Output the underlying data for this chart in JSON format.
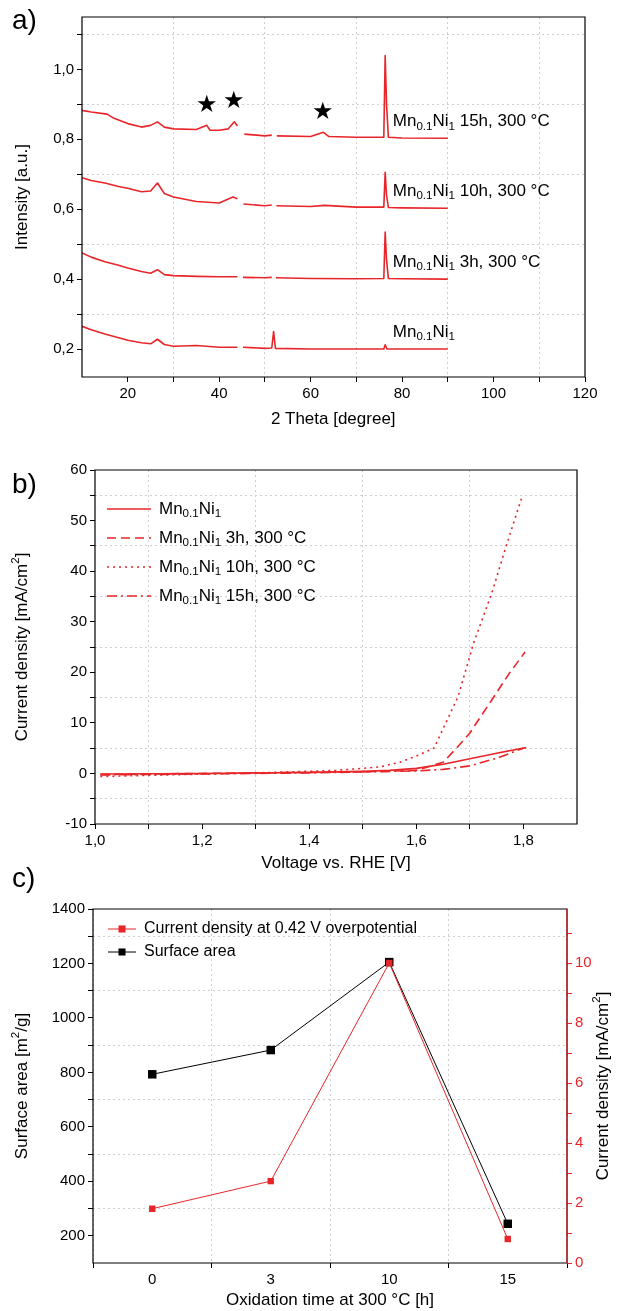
{
  "chart_data": [
    {
      "type": "line",
      "xlabel": "2 Theta [degree]",
      "ylabel": "Intensity [a.u.]",
      "xlim": [
        10,
        120
      ],
      "xticks": [
        20,
        {
          "value": 30,
          "label": null
        },
        40,
        {
          "value": 50,
          "label": null
        },
        60,
        {
          "value": 70,
          "label": null
        },
        80,
        {
          "value": 90,
          "label": null
        },
        100,
        {
          "value": 110,
          "label": null
        },
        120
      ],
      "ylim": [
        0.12,
        1.15
      ],
      "yticks": [
        {
          "value": 0.2,
          "label": "0,2"
        },
        {
          "value": 0.3,
          "label": null
        },
        {
          "value": 0.4,
          "label": "0,4"
        },
        {
          "value": 0.5,
          "label": null
        },
        {
          "value": 0.6,
          "label": "0,6"
        },
        {
          "value": 0.7,
          "label": null
        },
        {
          "value": 0.8,
          "label": "0,8"
        },
        {
          "value": 0.9,
          "label": null
        },
        {
          "value": 1.0,
          "label": "1,0"
        },
        {
          "value": 1.1,
          "label": null
        }
      ],
      "grid": true,
      "marker": "none",
      "line_style": "solid",
      "series": [
        {
          "name": "Mn$_{0.1}$Ni$_{1}$",
          "color": "#e8262a",
          "x": [
            10,
            12,
            15,
            18,
            20,
            23,
            25,
            26.5,
            28,
            30,
            35,
            40,
            44,
            44.6,
            45.2,
            50,
            51.5,
            51.9,
            52.3,
            60,
            70,
            76,
            76.3,
            76.7,
            80,
            90
          ],
          "values": [
            0.265,
            0.255,
            0.243,
            0.232,
            0.225,
            0.218,
            0.215,
            0.228,
            0.213,
            0.208,
            0.21,
            0.205,
            0.205,
            null,
            0.205,
            0.202,
            0.203,
            0.25,
            0.202,
            0.2,
            0.2,
            0.2,
            0.212,
            0.2,
            0.2,
            0.2
          ]
        },
        {
          "name": "Mn$_{0.1}$Ni$_{1}$ 3h, 300 °C",
          "color": "#e8262a",
          "x": [
            10,
            12,
            15,
            18,
            20,
            23,
            25,
            26.5,
            28,
            30,
            35,
            40,
            44,
            44.6,
            45.2,
            50,
            51.5,
            51.9,
            52.4,
            60,
            70,
            76,
            76.3,
            76.6,
            77,
            80,
            90
          ],
          "values": [
            0.475,
            0.463,
            0.45,
            0.44,
            0.432,
            0.422,
            0.417,
            0.427,
            0.413,
            0.41,
            0.408,
            0.407,
            0.407,
            null,
            0.405,
            0.404,
            0.405,
            null,
            0.404,
            0.402,
            0.401,
            0.402,
            0.535,
            0.455,
            0.402,
            0.401,
            0.4
          ]
        },
        {
          "name": "Mn$_{0.1}$Ni$_{1}$ 10h, 300 °C",
          "color": "#e8262a",
          "x": [
            10,
            12,
            15,
            18,
            20,
            23,
            25,
            26.5,
            28,
            30,
            35,
            37.5,
            40,
            43,
            44,
            44.6,
            45.3,
            50,
            51.5,
            51.9,
            52.5,
            60,
            63,
            70,
            76,
            76.3,
            76.6,
            77,
            80,
            90
          ],
          "values": [
            0.69,
            0.682,
            0.675,
            0.665,
            0.66,
            0.65,
            0.652,
            0.675,
            0.645,
            0.635,
            0.622,
            0.62,
            0.618,
            0.635,
            0.63,
            null,
            0.615,
            0.61,
            0.612,
            null,
            0.61,
            0.608,
            0.611,
            0.606,
            0.606,
            0.706,
            0.64,
            0.605,
            0.604,
            0.603
          ]
        },
        {
          "name": "Mn$_{0.1}$Ni$_{1}$ 15h, 300 °C",
          "color": "#e8262a",
          "x": [
            10,
            12,
            15.5,
            17,
            20,
            23,
            25,
            26.5,
            28,
            30,
            35,
            37.3,
            38,
            40,
            42,
            43.3,
            44,
            44.6,
            45.5,
            50,
            51.5,
            51.9,
            52.6,
            60,
            62.8,
            64,
            70,
            76,
            76.3,
            76.6,
            77,
            80,
            90
          ],
          "values": [
            0.883,
            0.878,
            0.872,
            0.86,
            0.845,
            0.835,
            0.84,
            0.85,
            0.835,
            0.83,
            0.828,
            0.84,
            0.826,
            0.826,
            0.83,
            0.85,
            0.838,
            null,
            0.815,
            0.81,
            0.812,
            null,
            0.81,
            0.808,
            0.82,
            0.808,
            0.806,
            0.806,
            1.04,
            0.9,
            0.806,
            0.804,
            0.803
          ]
        }
      ],
      "annotations": [
        "a)",
        {
          "text": "★",
          "x": 37.3,
          "y": 0.84
        },
        {
          "text": "★",
          "x": 43.3,
          "y": 0.85
        },
        {
          "text": "★",
          "x": 62.8,
          "y": 0.82
        }
      ]
    },
    {
      "type": "line",
      "xlabel": "Voltage vs. RHE [V]",
      "ylabel": "Current density [mA/cm$^{2}$]",
      "xlim": [
        1.0,
        1.9
      ],
      "xticks": [
        {
          "value": 1.0,
          "label": "1,0"
        },
        {
          "value": 1.1,
          "label": null
        },
        {
          "value": 1.2,
          "label": "1,2"
        },
        {
          "value": 1.3,
          "label": null
        },
        {
          "value": 1.4,
          "label": "1,4"
        },
        {
          "value": 1.5,
          "label": null
        },
        {
          "value": 1.6,
          "label": "1,6"
        },
        {
          "value": 1.7,
          "label": null
        },
        {
          "value": 1.8,
          "label": "1,8"
        }
      ],
      "ylim": [
        -10,
        60
      ],
      "yticks": [
        -10,
        {
          "value": -5,
          "label": null
        },
        0,
        {
          "value": 5,
          "label": null
        },
        10,
        {
          "value": 15,
          "label": null
        },
        20,
        {
          "value": 25,
          "label": null
        },
        30,
        {
          "value": 35,
          "label": null
        },
        40,
        {
          "value": 45,
          "label": null
        },
        50,
        {
          "value": 55,
          "label": null
        },
        60
      ],
      "grid": true,
      "legend": "top left",
      "marker": "none",
      "series": [
        {
          "name": "Mn$_{0.1}$Ni$_{1}$",
          "color": "#e8262a",
          "line_style": "solid",
          "x": [
            1.01,
            1.2,
            1.4,
            1.5,
            1.55,
            1.6,
            1.65,
            1.7,
            1.75,
            1.805
          ],
          "values": [
            -0.1,
            0,
            0.2,
            0.4,
            0.6,
            1.0,
            1.8,
            2.9,
            4.0,
            5.1
          ]
        },
        {
          "name": "Mn$_{0.1}$Ni$_{1}$ 3h, 300 °C",
          "color": "#e8262a",
          "line_style": "dashed",
          "x": [
            1.01,
            1.3,
            1.5,
            1.6,
            1.65,
            1.675,
            1.7,
            1.725,
            1.75,
            1.775,
            1.803
          ],
          "values": [
            -0.2,
            0.1,
            0.3,
            0.6,
            2.2,
            5,
            8,
            12,
            16,
            20,
            24
          ]
        },
        {
          "name": "Mn$_{0.1}$Ni$_{1}$ 10h, 300 °C",
          "color": "#e8262a",
          "line_style": "dotted",
          "x": [
            1.01,
            1.3,
            1.45,
            1.5,
            1.532,
            1.569,
            1.599,
            1.633,
            1.678,
            1.707,
            1.741,
            1.767,
            1.797
          ],
          "values": [
            -0.6,
            0.1,
            0.6,
            1.0,
            1.3,
            2.2,
            3.4,
            5.0,
            15.2,
            25.8,
            35.7,
            44.7,
            54.6
          ]
        },
        {
          "name": "Mn$_{0.1}$Ni$_{1}$ 15h, 300 °C",
          "color": "#e8262a",
          "line_style": "dashdot",
          "x": [
            1.01,
            1.4,
            1.6,
            1.65,
            1.7,
            1.75,
            1.8
          ],
          "values": [
            -0.3,
            0.1,
            0.5,
            0.8,
            1.5,
            3.0,
            5.0
          ]
        }
      ],
      "annotations": [
        "b)"
      ]
    },
    {
      "type": "line",
      "categories": [
        "0",
        "3",
        "10",
        "15"
      ],
      "xlabel": "Oxidation time at 300 °C [h]",
      "ylabel": "Surface area [m$^{2}$/g]",
      "y2label": "Current density [mA/cm$^{2}$]",
      "ylim": [
        100,
        1400
      ],
      "yticks": [
        200,
        {
          "value": 300,
          "label": null
        },
        400,
        {
          "value": 500,
          "label": null
        },
        600,
        {
          "value": 700,
          "label": null
        },
        800,
        {
          "value": 900,
          "label": null
        },
        1000,
        {
          "value": 1100,
          "label": null
        },
        1200,
        {
          "value": 1300,
          "label": null
        },
        1400
      ],
      "y2lim": [
        0,
        11.8
      ],
      "y2ticks": [
        0,
        {
          "value": 1,
          "label": null
        },
        2,
        {
          "value": 3,
          "label": null
        },
        4,
        {
          "value": 5,
          "label": null
        },
        6,
        {
          "value": 7,
          "label": null
        },
        8,
        {
          "value": 9,
          "label": null
        },
        10,
        {
          "value": 11,
          "label": null
        }
      ],
      "grid": true,
      "legend": "top left",
      "marker": "square",
      "line_style": "solid",
      "series": [
        {
          "name": "Current density at 0.42 V overpotential",
          "color": "#e8262a",
          "axis": "y2",
          "values": [
            1.81,
            2.73,
            10.0,
            0.8
          ]
        },
        {
          "name": "Surface area",
          "color": "#000000",
          "values": [
            793,
            882,
            1205,
            244
          ]
        }
      ],
      "annotations": [
        "c)"
      ]
    }
  ]
}
